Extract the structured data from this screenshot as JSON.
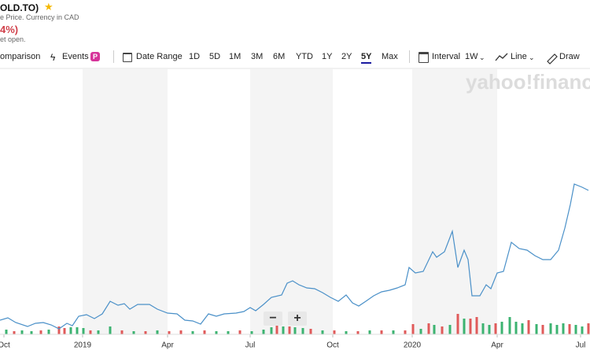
{
  "header": {
    "symbol": "OLD.TO)",
    "subtitle": "e Price. Currency in CAD",
    "change": "4%)",
    "status": "et open."
  },
  "toolbar": {
    "comparison": "omparison",
    "events": "Events",
    "events_badge": "P",
    "date_range": "Date Range",
    "ranges": [
      "1D",
      "5D",
      "1M",
      "3M",
      "6M",
      "YTD",
      "1Y",
      "2Y",
      "5Y",
      "Max"
    ],
    "active_range": 8,
    "interval_label": "Interval",
    "interval_value": "1W",
    "chart_style": "Line",
    "draw": "Draw"
  },
  "watermark": "yahoo!finance",
  "zoom": {
    "out": "−",
    "in": "+"
  },
  "chart_data": {
    "type": "line",
    "xlim": [
      0,
      750
    ],
    "xticks": [
      {
        "value": 5,
        "label": "Oct"
      },
      {
        "value": 105,
        "label": "2019"
      },
      {
        "value": 213,
        "label": "Apr"
      },
      {
        "value": 318,
        "label": "Jul"
      },
      {
        "value": 423,
        "label": "Oct"
      },
      {
        "value": 524,
        "label": "2020"
      },
      {
        "value": 632,
        "label": "Apr"
      },
      {
        "value": 738,
        "label": "Jul"
      }
    ],
    "ylim": [
      0,
      337
    ],
    "series": [
      {
        "color": "#4a90c8",
        "x": [
          0,
          10,
          20,
          35,
          45,
          55,
          65,
          75,
          85,
          92,
          100,
          110,
          120,
          130,
          140,
          150,
          158,
          165,
          175,
          190,
          200,
          213,
          225,
          235,
          245,
          255,
          265,
          275,
          285,
          300,
          310,
          318,
          325,
          335,
          345,
          358,
          365,
          372,
          380,
          390,
          400,
          410,
          420,
          430,
          440,
          448,
          456,
          465,
          475,
          485,
          495,
          505,
          515,
          520,
          528,
          538,
          550,
          555,
          565,
          575,
          582,
          590,
          595,
          600,
          610,
          618,
          624,
          632,
          640,
          650,
          660,
          670,
          680,
          690,
          700,
          710,
          718,
          725,
          730,
          740,
          748
        ],
        "values": [
          18,
          21,
          15,
          10,
          14,
          15,
          12,
          7,
          14,
          11,
          23,
          25,
          20,
          26,
          42,
          37,
          39,
          32,
          38,
          38,
          32,
          27,
          26,
          18,
          17,
          13,
          26,
          23,
          26,
          27,
          29,
          34,
          30,
          38,
          47,
          50,
          65,
          68,
          63,
          59,
          58,
          53,
          47,
          42,
          50,
          40,
          36,
          42,
          49,
          54,
          56,
          59,
          63,
          85,
          78,
          80,
          105,
          98,
          105,
          131,
          85,
          107,
          95,
          49,
          49,
          63,
          58,
          78,
          80,
          117,
          109,
          107,
          100,
          95,
          95,
          107,
          135,
          165,
          191,
          187,
          183
        ]
      }
    ],
    "volume": {
      "ylim": [
        0,
        337
      ],
      "x": [
        8,
        18,
        28,
        40,
        52,
        62,
        75,
        82,
        90,
        98,
        106,
        115,
        125,
        140,
        155,
        170,
        185,
        200,
        215,
        230,
        245,
        260,
        275,
        290,
        305,
        320,
        335,
        345,
        352,
        360,
        368,
        375,
        385,
        395,
        410,
        425,
        440,
        455,
        470,
        485,
        500,
        515,
        525,
        535,
        545,
        552,
        562,
        572,
        582,
        590,
        598,
        606,
        614,
        622,
        630,
        638,
        648,
        656,
        664,
        672,
        682,
        690,
        700,
        708,
        716,
        724,
        732,
        740,
        748
      ],
      "values": [
        6,
        4,
        5,
        4,
        5,
        6,
        10,
        8,
        9,
        9,
        8,
        5,
        5,
        10,
        5,
        4,
        4,
        5,
        4,
        5,
        4,
        5,
        4,
        4,
        5,
        4,
        6,
        9,
        13,
        10,
        10,
        9,
        8,
        7,
        5,
        5,
        4,
        4,
        5,
        5,
        5,
        5,
        13,
        7,
        14,
        12,
        10,
        12,
        26,
        20,
        20,
        22,
        14,
        12,
        14,
        16,
        22,
        16,
        14,
        18,
        13,
        12,
        14,
        12,
        14,
        13,
        12,
        10,
        14
      ],
      "colors": [
        "#3cb371",
        "#e05a5a",
        "#3cb371",
        "#3cb371",
        "#e05a5a",
        "#3cb371",
        "#e05a5a",
        "#e05a5a",
        "#3cb371",
        "#3cb371",
        "#3cb371",
        "#e05a5a",
        "#3cb371",
        "#3cb371",
        "#e05a5a",
        "#3cb371",
        "#e05a5a",
        "#3cb371",
        "#e05a5a",
        "#e05a5a",
        "#3cb371",
        "#e05a5a",
        "#3cb371",
        "#3cb371",
        "#e05a5a",
        "#3cb371",
        "#3cb371",
        "#3cb371",
        "#e05a5a",
        "#3cb371",
        "#e05a5a",
        "#3cb371",
        "#3cb371",
        "#e05a5a",
        "#3cb371",
        "#e05a5a",
        "#3cb371",
        "#e05a5a",
        "#3cb371",
        "#e05a5a",
        "#3cb371",
        "#e05a5a",
        "#e05a5a",
        "#3cb371",
        "#e05a5a",
        "#3cb371",
        "#e05a5a",
        "#3cb371",
        "#e05a5a",
        "#3cb371",
        "#e05a5a",
        "#e05a5a",
        "#3cb371",
        "#3cb371",
        "#e05a5a",
        "#3cb371",
        "#3cb371",
        "#3cb371",
        "#3cb371",
        "#e05a5a",
        "#3cb371",
        "#e05a5a",
        "#3cb371",
        "#3cb371",
        "#3cb371",
        "#e05a5a",
        "#3cb371",
        "#3cb371",
        "#e05a5a"
      ]
    }
  }
}
